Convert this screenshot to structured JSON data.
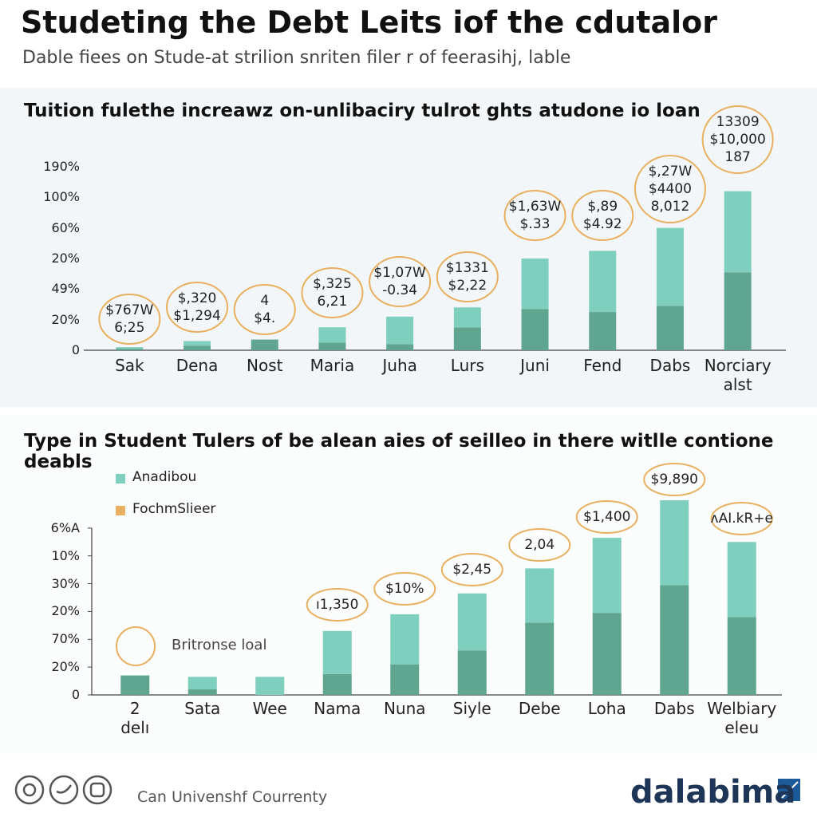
{
  "header": {
    "title": "Studeting the Debt Leits iof the cdutalor",
    "subtitle": "Dable fiees on Stude-at strilion snriten filer r of feerasihj, lable"
  },
  "chart_data": [
    {
      "type": "bar",
      "stacked": true,
      "title": "Tuition fulethe increawz on-unlibaciry tulrot ghts atudone io loan",
      "categories": [
        "Sak",
        "Dena",
        "Nost",
        "Maria",
        "Juha",
        "Lurs",
        "Juni",
        "Fend",
        "Dabs",
        "Norciary\nalst"
      ],
      "series": [
        {
          "color": "#5fa58f",
          "values": [
            0.05,
            0.15,
            0.35,
            0.25,
            0.2,
            0.75,
            1.35,
            1.25,
            1.45,
            2.55
          ]
        },
        {
          "color": "#7ecfbd",
          "values": [
            0.05,
            0.15,
            0,
            0.5,
            0.9,
            0.65,
            1.65,
            2.0,
            2.55,
            2.65
          ]
        }
      ],
      "annotations": [
        "$767W\n6;25",
        "$,320\n$1,294",
        "4\n$4.",
        "$,325\n6,21",
        "$1,07W\n-0.34",
        "$1331\n$2,22",
        "$1,63W\n$.33",
        "$,89\n$4.92",
        "$,27W\n$4400\n8,012",
        "13309\n$10,000\n187"
      ],
      "annotation_color": "#e8b060",
      "ylim": [
        0,
        6
      ],
      "yticks": [
        0,
        {
          "value": 1,
          "label": "20%"
        },
        {
          "value": 2,
          "label": "49%"
        },
        {
          "value": 3,
          "label": "20%"
        },
        {
          "value": 4,
          "label": "60%"
        },
        {
          "value": 5,
          "label": "100%"
        },
        {
          "value": 6,
          "label": "190%"
        }
      ],
      "axis_line": false
    },
    {
      "type": "bar",
      "stacked": true,
      "title": "Type in Student Tulers of be alean aies of seilleo in there witlle contione deabls",
      "legend": [
        {
          "name": "Anadibou",
          "color": "#7ecfbd"
        },
        {
          "name": "FochmSlieer",
          "color": "#e8b060"
        }
      ],
      "note": "Britronse loal",
      "categories": [
        "2\ndelı",
        "Sata",
        "Wee",
        "Nama",
        "Nuna",
        "Siyle",
        "Debe",
        "Loha",
        "Dabs",
        "Welbiary\neleu"
      ],
      "series": [
        {
          "color": "#5fa58f",
          "values": [
            0.7,
            0.2,
            0,
            0.75,
            1.1,
            1.6,
            2.6,
            2.95,
            3.95,
            2.8
          ]
        },
        {
          "color": "#7ecfbd",
          "values": [
            0,
            0.45,
            0.65,
            1.55,
            1.8,
            2.05,
            1.95,
            2.7,
            3.05,
            2.7
          ]
        }
      ],
      "annotations": [
        null,
        null,
        null,
        "ı1,350",
        "$10%",
        "$2,45",
        "2,04",
        "$1,400",
        "$9,890",
        "ʌAI.kR+e"
      ],
      "annotation_color": "#e8b060",
      "ylim": [
        0,
        7
      ],
      "yticks": [
        0,
        {
          "value": 1,
          "label": "20%"
        },
        {
          "value": 2,
          "label": "70%"
        },
        {
          "value": 3,
          "label": "20%"
        },
        {
          "value": 4,
          "label": "30%"
        },
        {
          "value": 5,
          "label": "10%"
        },
        {
          "value": 6,
          "label": "6%A"
        }
      ],
      "axis_line": true
    }
  ],
  "footer": {
    "credit": "Can Univenshf Courrenty",
    "brand": "dalabima"
  }
}
